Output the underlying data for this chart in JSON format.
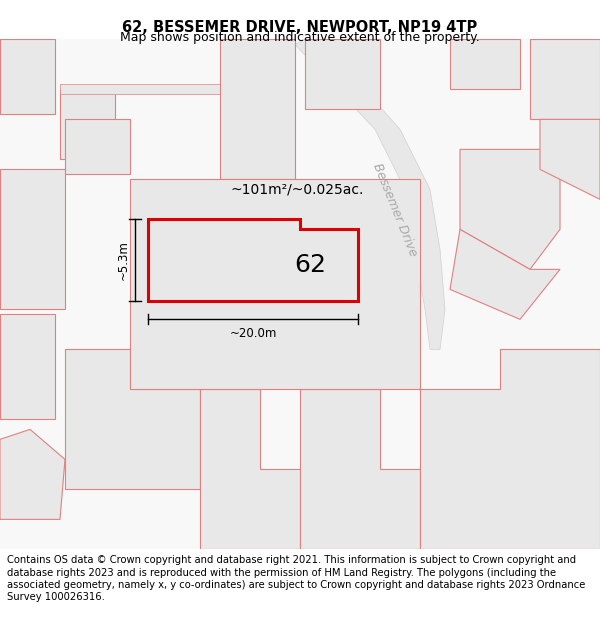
{
  "title": "62, BESSEMER DRIVE, NEWPORT, NP19 4TP",
  "subtitle": "Map shows position and indicative extent of the property.",
  "footer": "Contains OS data © Crown copyright and database right 2021. This information is subject to Crown copyright and database rights 2023 and is reproduced with the permission of HM Land Registry. The polygons (including the associated geometry, namely x, y co-ordinates) are subject to Crown copyright and database rights 2023 Ordnance Survey 100026316.",
  "map_background": "#f5f5f5",
  "neighbor_fill": "#e8e8e8",
  "neighbor_outline": "#e08080",
  "road_fill": "#e0e0e0",
  "road_outline": "#cccccc",
  "prop_fill": "#e8e8e8",
  "prop_outline": "#dd0000",
  "area_text": "~101m²/~0.025ac.",
  "label_62": "62",
  "dim_width": "~20.0m",
  "dim_height": "~5.3m",
  "road_label": "Bessemer Drive",
  "title_fontsize": 10.5,
  "subtitle_fontsize": 9,
  "footer_fontsize": 7.2
}
